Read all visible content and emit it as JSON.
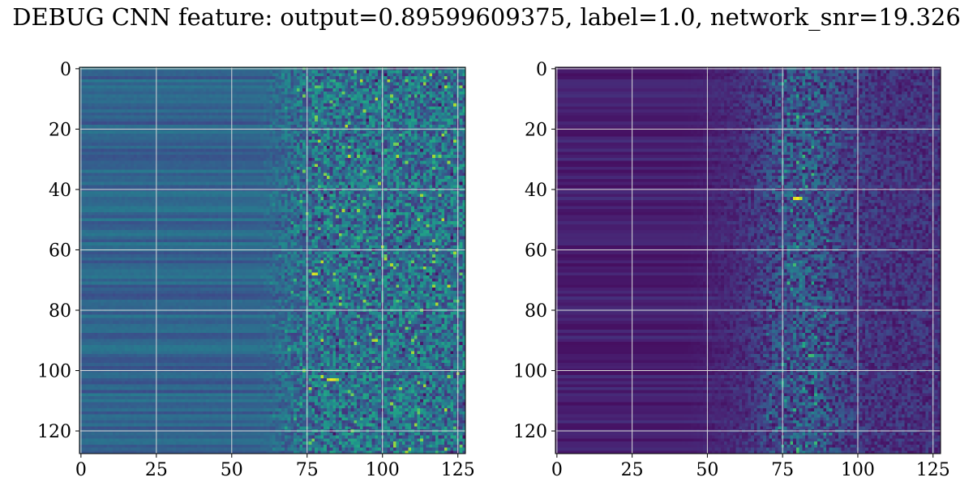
{
  "title": "DEBUG CNN feature: output=0.89599609375, label=1.0, network_snr=19.326",
  "chart_data": [
    {
      "type": "heatmap",
      "colormap": "viridis",
      "rows": 128,
      "cols": 128,
      "xlim": [
        0,
        127
      ],
      "ylim": [
        127,
        0
      ],
      "xticks": [
        0,
        25,
        50,
        75,
        100,
        125
      ],
      "yticks": [
        0,
        20,
        40,
        60,
        80,
        100,
        120
      ],
      "xtick_labels": [
        "0",
        "25",
        "50",
        "75",
        "100",
        "125"
      ],
      "ytick_labels": [
        "0",
        "20",
        "40",
        "60",
        "80",
        "100",
        "120"
      ],
      "grid": true,
      "description_of_values": "left columns 0-50 smooth horizontal bands of mid values (~0.25-0.4 normalized); beyond column ~70 noisy with bright hotspots near (row 68, col 78) and (row 103, col 84)"
    },
    {
      "type": "heatmap",
      "colormap": "viridis",
      "rows": 128,
      "cols": 128,
      "xlim": [
        0,
        127
      ],
      "ylim": [
        127,
        0
      ],
      "xticks": [
        0,
        25,
        50,
        75,
        100,
        125
      ],
      "yticks": [
        0,
        20,
        40,
        60,
        80,
        100,
        120
      ],
      "xtick_labels": [
        "0",
        "25",
        "50",
        "75",
        "100",
        "125"
      ],
      "ytick_labels": [
        "0",
        "20",
        "40",
        "60",
        "80",
        "100",
        "120"
      ],
      "grid": true,
      "description_of_values": "mostly dark (low values) on left; noisy mid values beyond column ~50, strongest near columns 75-90; bright hotspot near (row 43, col 80)"
    }
  ]
}
